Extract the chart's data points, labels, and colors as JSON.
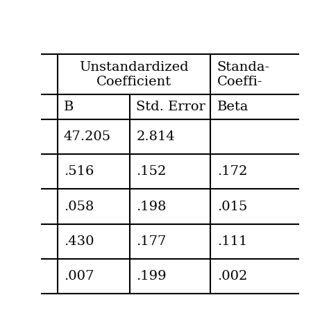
{
  "header1_col1": "Unstandardized\nCoefficient",
  "header1_col2": "Standa-\nrdized\nCoeffi-",
  "header2": [
    "B",
    "Std. Error",
    "Beta"
  ],
  "rows": [
    [
      "47.205",
      "2.814",
      ""
    ],
    [
      ".516",
      ".152",
      ".172"
    ],
    [
      ".058",
      ".198",
      ".015"
    ],
    [
      ".430",
      ".177",
      ".111"
    ],
    [
      ".007",
      ".199",
      ".002"
    ]
  ],
  "background_color": "#ffffff",
  "line_color": "#000000",
  "text_color": "#000000",
  "font_size": 14,
  "header_font_size": 14
}
